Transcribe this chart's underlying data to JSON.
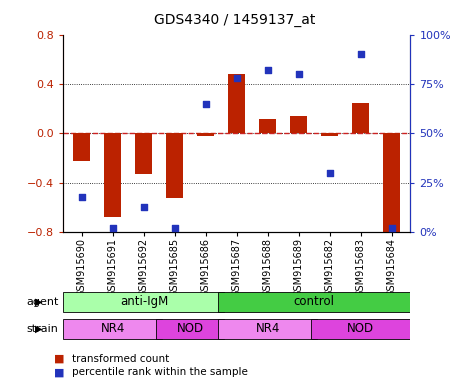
{
  "title": "GDS4340 / 1459137_at",
  "samples": [
    "GSM915690",
    "GSM915691",
    "GSM915692",
    "GSM915685",
    "GSM915686",
    "GSM915687",
    "GSM915688",
    "GSM915689",
    "GSM915682",
    "GSM915683",
    "GSM915684"
  ],
  "transformed_count": [
    -0.22,
    -0.68,
    -0.33,
    -0.52,
    -0.02,
    0.48,
    0.12,
    0.14,
    -0.02,
    0.25,
    -0.82
  ],
  "percentile_rank": [
    18,
    2,
    13,
    2,
    65,
    78,
    82,
    80,
    30,
    90,
    2
  ],
  "bar_color": "#bb2200",
  "dot_color": "#2233bb",
  "zero_line_color": "#cc2222",
  "ylim_left": [
    -0.8,
    0.8
  ],
  "ylim_right": [
    0,
    100
  ],
  "yticks_left": [
    -0.8,
    -0.4,
    0.0,
    0.4,
    0.8
  ],
  "yticks_right": [
    0,
    25,
    50,
    75,
    100
  ],
  "ytick_labels_right": [
    "0%",
    "25%",
    "50%",
    "75%",
    "100%"
  ],
  "agent_groups": [
    {
      "label": "anti-IgM",
      "start": 0,
      "end": 5,
      "color": "#aaffaa"
    },
    {
      "label": "control",
      "start": 5,
      "end": 11,
      "color": "#44cc44"
    }
  ],
  "strain_groups": [
    {
      "label": "NR4",
      "start": 0,
      "end": 3,
      "color": "#ee88ee"
    },
    {
      "label": "NOD",
      "start": 3,
      "end": 5,
      "color": "#dd44dd"
    },
    {
      "label": "NR4",
      "start": 5,
      "end": 8,
      "color": "#ee88ee"
    },
    {
      "label": "NOD",
      "start": 8,
      "end": 11,
      "color": "#dd44dd"
    }
  ],
  "legend_items": [
    {
      "label": "transformed count",
      "color": "#bb2200"
    },
    {
      "label": "percentile rank within the sample",
      "color": "#2233bb"
    }
  ]
}
